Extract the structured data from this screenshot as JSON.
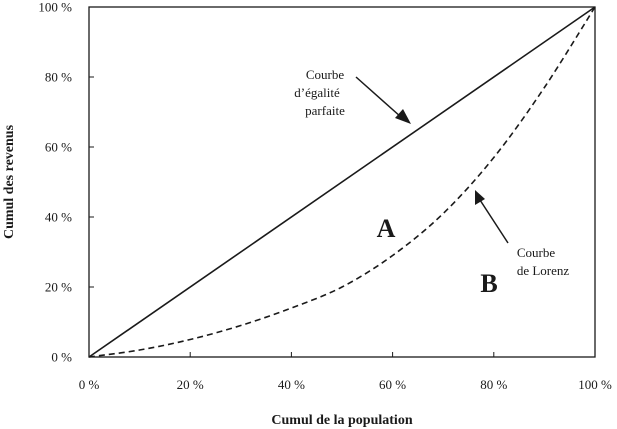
{
  "chart_data": {
    "type": "line",
    "xlabel": "Cumul de la population",
    "ylabel": "Cumul des revenus",
    "xlim": [
      0,
      100
    ],
    "ylim": [
      0,
      100
    ],
    "x_ticks": [
      "0 %",
      "20 %",
      "40 %",
      "60 %",
      "80 %",
      "100 %"
    ],
    "y_ticks": [
      "0 %",
      "20 %",
      "40 %",
      "60 %",
      "80 %",
      "100 %"
    ],
    "grid": false,
    "series": [
      {
        "style": "solid",
        "x": [
          0,
          100
        ],
        "y": [
          0,
          100
        ]
      },
      {
        "style": "dashed",
        "x": [
          0,
          10,
          20,
          30,
          40,
          50,
          60,
          70,
          80,
          90,
          100
        ],
        "y": [
          0,
          2,
          5,
          9,
          14,
          20,
          29,
          41,
          57,
          77,
          100
        ]
      }
    ],
    "annotations": [
      {
        "lines": [
          "Courbe",
          "d’égalité",
          "parfaite"
        ]
      },
      {
        "lines": [
          "Courbe",
          "de Lorenz"
        ]
      }
    ],
    "regions": [
      "A",
      "B"
    ]
  }
}
